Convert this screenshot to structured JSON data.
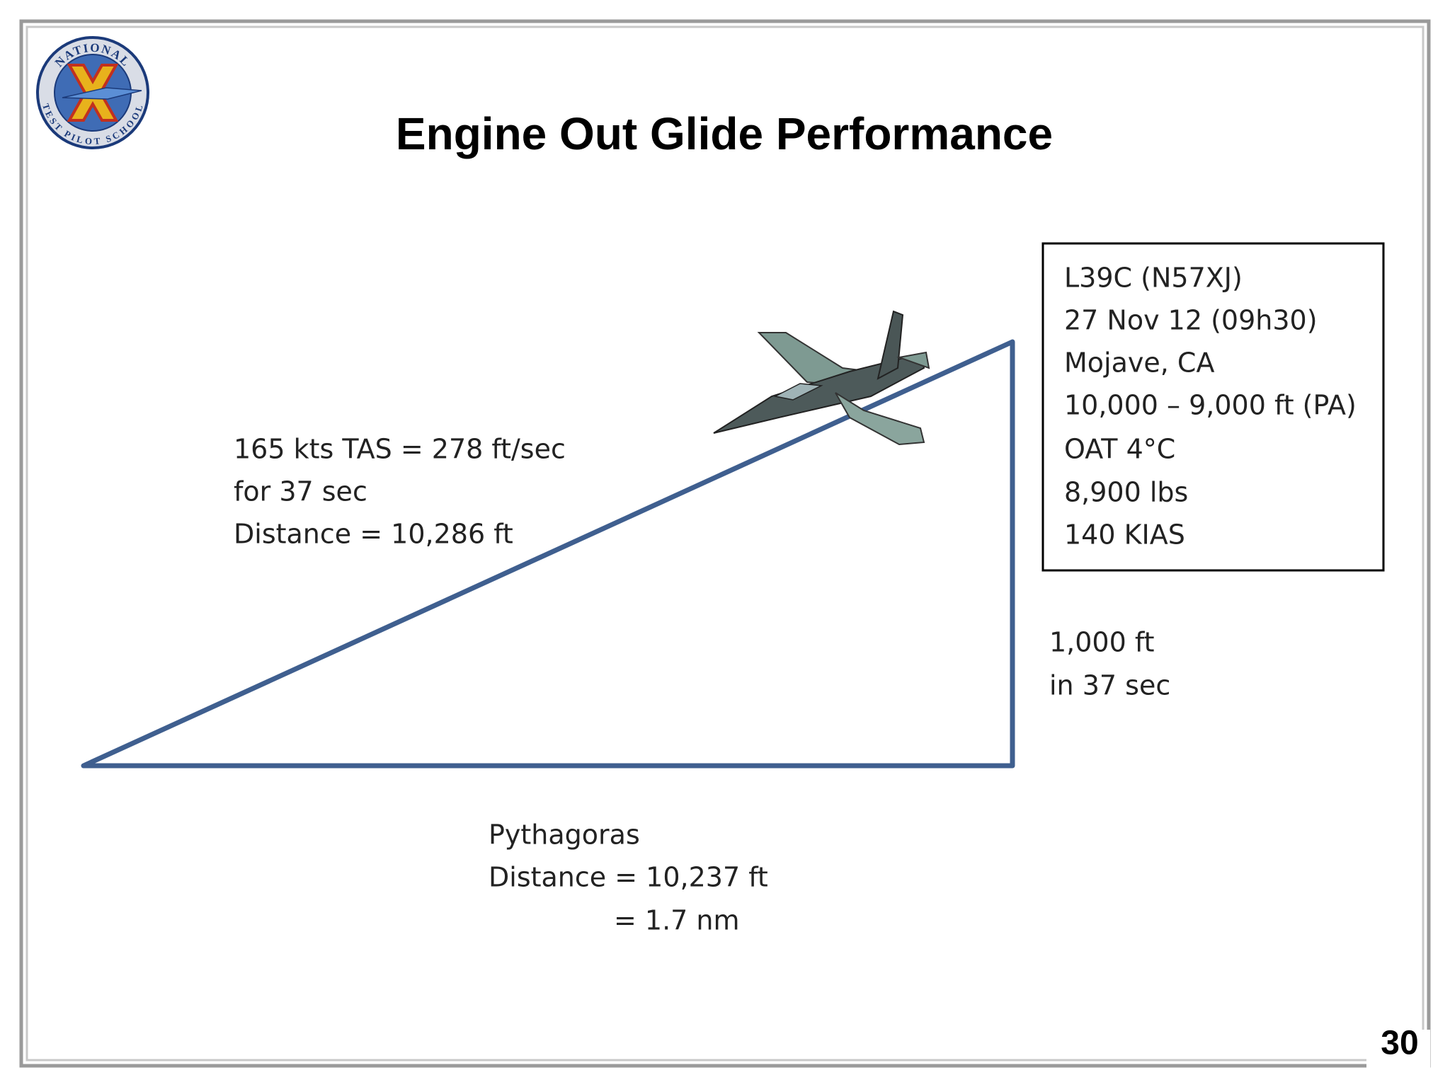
{
  "header": {
    "title": "Engine Out Glide Performance",
    "logo": {
      "top": "NATIONAL",
      "bottom": "TEST PILOT SCHOOL"
    }
  },
  "slant_label": [
    "165 kts TAS = 278 ft/sec",
    "for 37 sec",
    "Distance = 10,286 ft"
  ],
  "info_box": [
    "L39C (N57XJ)",
    "27 Nov 12 (09h30)",
    "Mojave, CA",
    "10,000 – 9,000 ft (PA)",
    "OAT 4°C",
    "8,900 lbs",
    "140 KIAS"
  ],
  "vertical_label": [
    "1,000 ft",
    "in 37 sec"
  ],
  "base_label": [
    "Pythagoras",
    "Distance = 10,237 ft",
    "= 1.7 nm"
  ],
  "page_number": "30"
}
